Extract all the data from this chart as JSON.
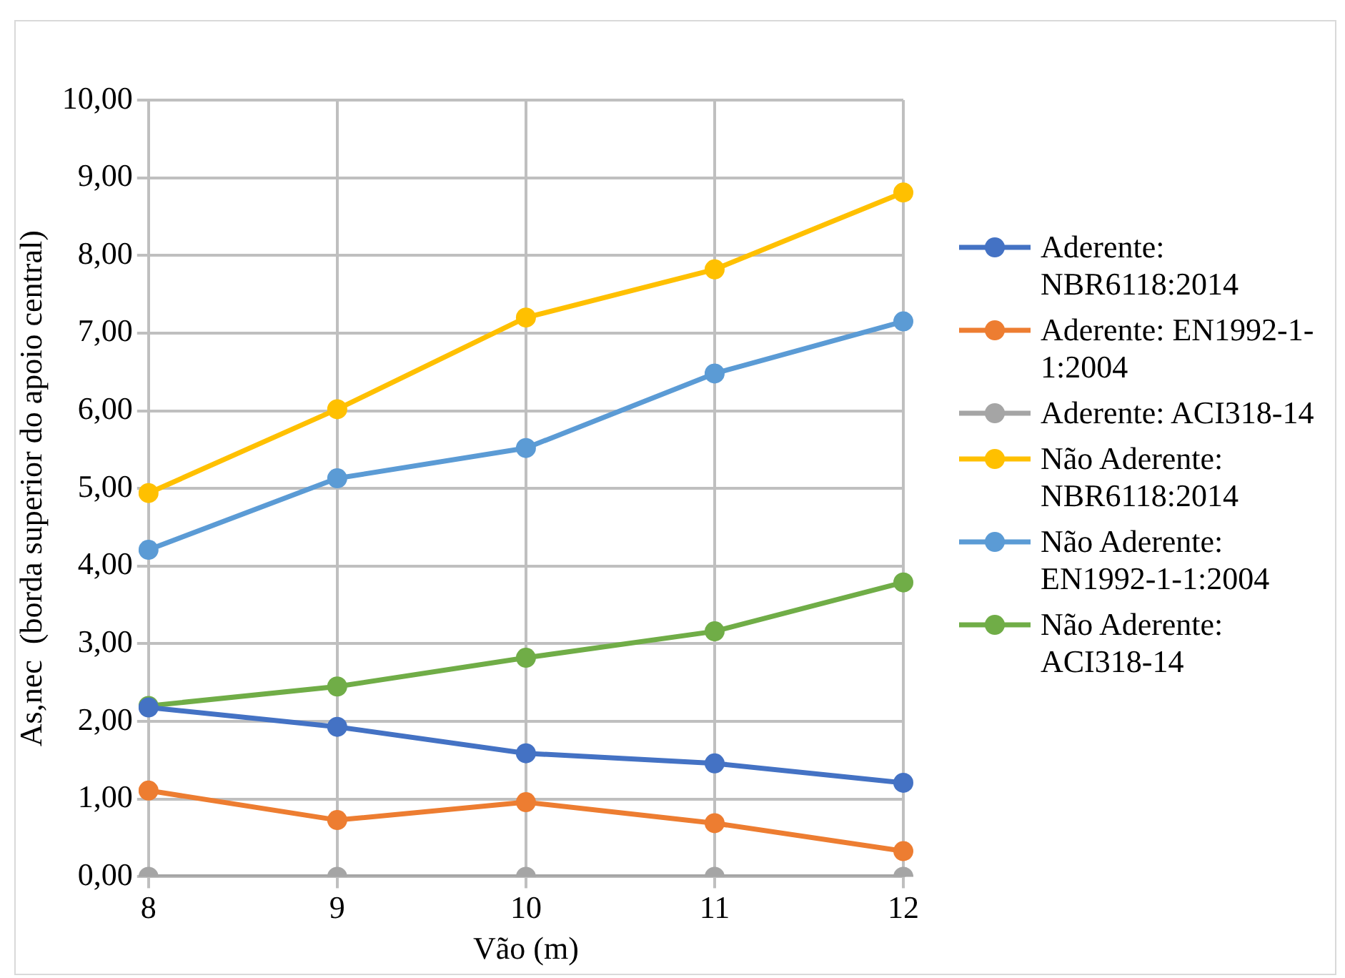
{
  "chart_data": {
    "type": "line",
    "xlabel": "Vão (m)",
    "ylabel": "As,nec  (borda superior do apoio central)",
    "categories": [
      "8",
      "9",
      "10",
      "11",
      "12"
    ],
    "series": [
      {
        "name": "Aderente: NBR6118:2014",
        "color": "#4472c4",
        "values": [
          2.18,
          1.93,
          1.59,
          1.46,
          1.21
        ]
      },
      {
        "name": "Aderente: EN1992-1-1:2004",
        "color": "#ed7d31",
        "values": [
          1.11,
          0.73,
          0.96,
          0.69,
          0.33
        ]
      },
      {
        "name": "Aderente: ACI318-14",
        "color": "#a5a5a5",
        "values": [
          0,
          0,
          0,
          0,
          0
        ]
      },
      {
        "name": "Não Aderente: NBR6118:2014",
        "color": "#ffc000",
        "values": [
          4.94,
          6.02,
          7.2,
          7.82,
          8.81
        ]
      },
      {
        "name": "Não Aderente: EN1992-1-1:2004",
        "color": "#5b9bd5",
        "values": [
          4.21,
          5.13,
          5.52,
          6.48,
          7.15
        ]
      },
      {
        "name": "Não Aderente: ACI318-14",
        "color": "#70ad47",
        "values": [
          2.2,
          2.45,
          2.82,
          3.16,
          3.79
        ]
      }
    ],
    "ylim": [
      0,
      10
    ],
    "yticks": [
      {
        "value": 0,
        "label": "0,00"
      },
      {
        "value": 1,
        "label": "1,00"
      },
      {
        "value": 2,
        "label": "2,00"
      },
      {
        "value": 3,
        "label": "3,00"
      },
      {
        "value": 4,
        "label": "4,00"
      },
      {
        "value": 5,
        "label": "5,00"
      },
      {
        "value": 6,
        "label": "6,00"
      },
      {
        "value": 7,
        "label": "7,00"
      },
      {
        "value": 8,
        "label": "8,00"
      },
      {
        "value": 9,
        "label": "9,00"
      },
      {
        "value": 10,
        "label": "10,00"
      }
    ],
    "grid": true,
    "legend": "right",
    "marker": "circle",
    "line_style": "solid"
  }
}
